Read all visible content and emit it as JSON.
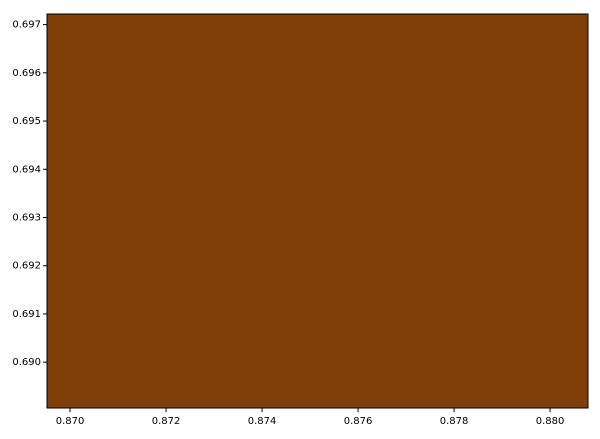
{
  "chart_data": {
    "type": "mandelbrot",
    "xlim": [
      0.86952,
      0.88079
    ],
    "ylim": [
      0.68905,
      0.69722
    ],
    "xticks": [
      {
        "value": 0.87,
        "label": "0.870"
      },
      0.872,
      0.874,
      0.876,
      0.878,
      {
        "value": 0.88,
        "label": "0.880"
      }
    ],
    "yticks": [
      {
        "value": 0.69,
        "label": "0.690"
      },
      0.691,
      0.692,
      0.693,
      0.694,
      0.695,
      0.696,
      0.697
    ]
  }
}
